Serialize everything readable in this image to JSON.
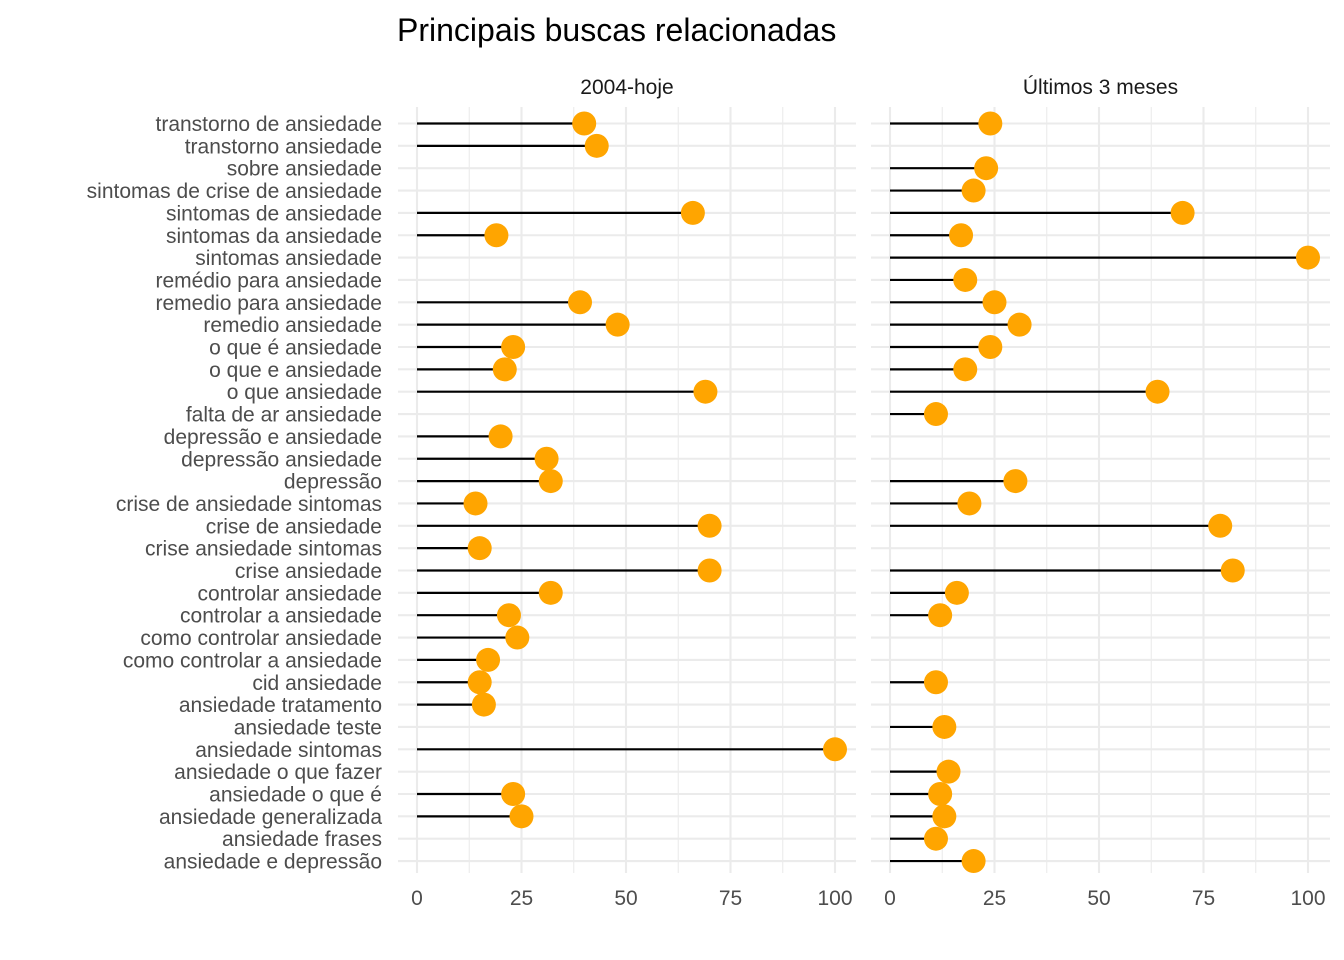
{
  "chart_data": {
    "type": "lollipop",
    "title": "Principais buscas relacionadas",
    "xlabel": "",
    "ylabel": "",
    "xlim": [
      0,
      100
    ],
    "x_ticks": [
      "0",
      "25",
      "50",
      "75",
      "100"
    ],
    "grid": true,
    "colors": {
      "point": "#FFA500",
      "segment": "#000000",
      "grid": "#EBEBEB"
    },
    "categories": [
      "transtorno de ansiedade",
      "transtorno ansiedade",
      "sobre ansiedade",
      "sintomas de crise de ansiedade",
      "sintomas de ansiedade",
      "sintomas da ansiedade",
      "sintomas ansiedade",
      "remédio para ansiedade",
      "remedio para ansiedade",
      "remedio ansiedade",
      "o que é ansiedade",
      "o que e ansiedade",
      "o que ansiedade",
      "falta de ar ansiedade",
      "depressão e ansiedade",
      "depressão ansiedade",
      "depressão",
      "crise de ansiedade sintomas",
      "crise de ansiedade",
      "crise ansiedade sintomas",
      "crise ansiedade",
      "controlar ansiedade",
      "controlar a ansiedade",
      "como controlar ansiedade",
      "como controlar a ansiedade",
      "cid ansiedade",
      "ansiedade tratamento",
      "ansiedade teste",
      "ansiedade sintomas",
      "ansiedade o que fazer",
      "ansiedade o que é",
      "ansiedade generalizada",
      "ansiedade frases",
      "ansiedade e depressão"
    ],
    "panels": [
      {
        "name": "2004-hoje",
        "values": [
          40,
          43,
          null,
          null,
          66,
          19,
          null,
          null,
          39,
          48,
          23,
          21,
          69,
          null,
          20,
          31,
          32,
          14,
          70,
          15,
          70,
          32,
          22,
          24,
          17,
          15,
          16,
          null,
          100,
          null,
          23,
          25,
          null,
          null
        ]
      },
      {
        "name": "Últimos 3 meses",
        "values": [
          24,
          null,
          23,
          20,
          70,
          17,
          100,
          18,
          25,
          31,
          24,
          18,
          64,
          11,
          null,
          null,
          30,
          19,
          79,
          null,
          82,
          16,
          12,
          null,
          null,
          11,
          null,
          13,
          null,
          14,
          12,
          13,
          11,
          20
        ]
      }
    ]
  }
}
